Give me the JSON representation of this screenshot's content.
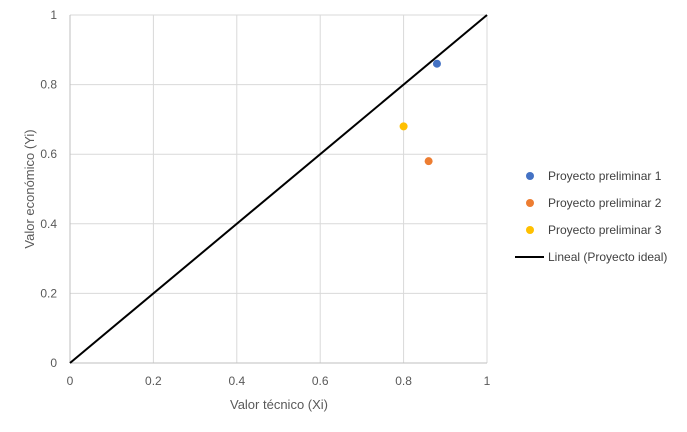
{
  "chart_data": {
    "type": "scatter",
    "title": "",
    "xlabel": "Valor técnico (Xi)",
    "ylabel": "Valor económico (Yi)",
    "xlim": [
      0,
      1
    ],
    "ylim": [
      0,
      1
    ],
    "x_ticks": [
      "0",
      "0.2",
      "0.4",
      "0.6",
      "0.8",
      "1"
    ],
    "y_ticks": [
      "0",
      "0.2",
      "0.4",
      "0.6",
      "0.8",
      "1"
    ],
    "x_tick_values": [
      0,
      0.2,
      0.4,
      0.6,
      0.8,
      1
    ],
    "y_tick_values": [
      0,
      0.2,
      0.4,
      0.6,
      0.8,
      1
    ],
    "grid": true,
    "legend_position": "right",
    "series": [
      {
        "name": "Proyecto preliminar 1",
        "color": "#4472C4",
        "points": [
          {
            "x": 0.88,
            "y": 0.86
          }
        ]
      },
      {
        "name": "Proyecto preliminar 2",
        "color": "#ED7D31",
        "points": [
          {
            "x": 0.86,
            "y": 0.58
          }
        ]
      },
      {
        "name": "Proyecto preliminar 3",
        "color": "#FFC000",
        "points": [
          {
            "x": 0.8,
            "y": 0.68
          }
        ]
      }
    ],
    "line": {
      "name": "Lineal (Proyecto ideal)",
      "color": "#000000",
      "points": [
        {
          "x": 0,
          "y": 0
        },
        {
          "x": 1,
          "y": 1
        }
      ]
    }
  }
}
